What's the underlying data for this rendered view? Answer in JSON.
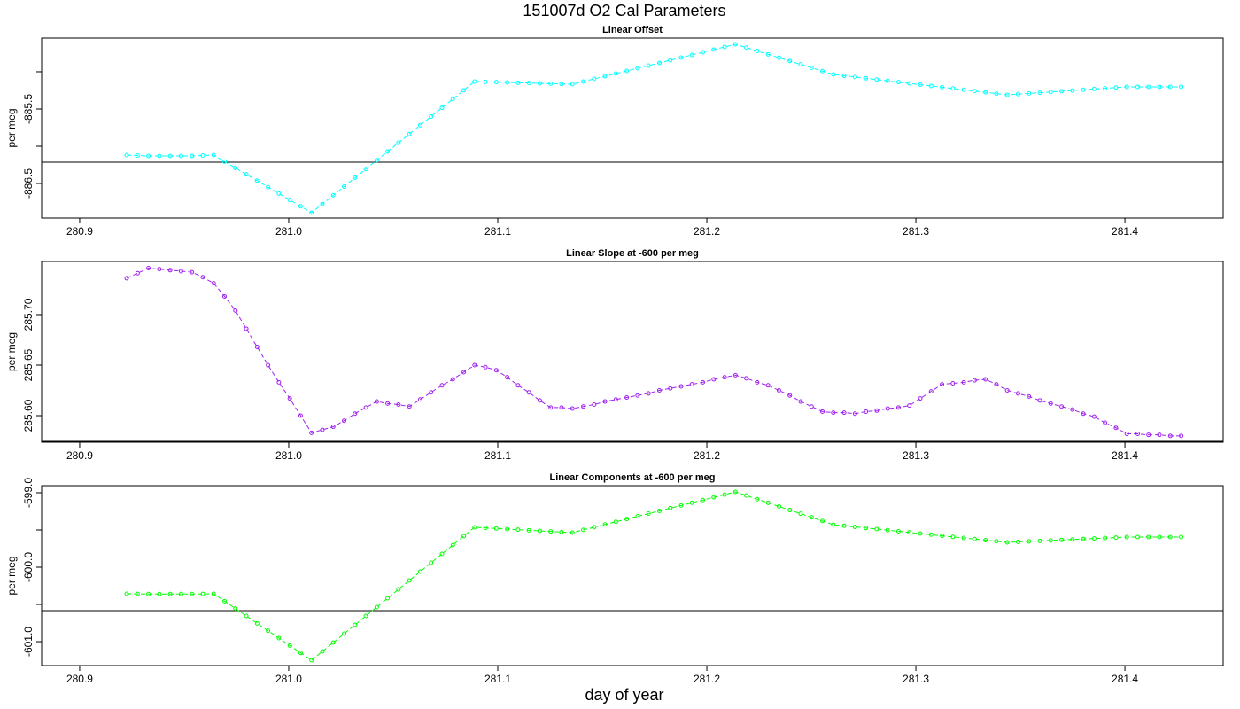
{
  "title": "151007d   O2 Cal Parameters",
  "xlabel": "day of year",
  "chart_data": [
    {
      "type": "line",
      "title": "Linear Offset",
      "ylabel": "per meg",
      "xlim": [
        280.8818,
        281.447
      ],
      "xticks": [
        280.9,
        {
          "value": 281,
          "label": "281.0"
        },
        281.1,
        281.2,
        281.3,
        281.4
      ],
      "ylim": [
        -886.964,
        -884.548
      ],
      "yticks": [
        -885.5,
        -886.5
      ],
      "yminor": [
        -885,
        -886
      ],
      "hline": -886.214,
      "x": [
        280.9225,
        280.9277,
        280.9329,
        280.9381,
        280.9433,
        280.9485,
        280.9537,
        280.9589,
        280.9641,
        280.9693,
        280.9745,
        280.9797,
        280.9849,
        280.9901,
        280.9953,
        281.0005,
        281.0057,
        281.0109,
        281.0161,
        281.0213,
        281.0265,
        281.0317,
        281.0369,
        281.0421,
        281.0473,
        281.0525,
        281.0577,
        281.0629,
        281.0681,
        281.0733,
        281.0785,
        281.0837,
        281.0889,
        281.0941,
        281.0993,
        281.1045,
        281.1097,
        281.1149,
        281.1201,
        281.1253,
        281.1305,
        281.1357,
        281.1409,
        281.1461,
        281.1513,
        281.1565,
        281.1617,
        281.1669,
        281.1721,
        281.1773,
        281.1825,
        281.1877,
        281.1929,
        281.1981,
        281.2033,
        281.2085,
        281.2137,
        281.2189,
        281.2241,
        281.2293,
        281.2345,
        281.2397,
        281.2449,
        281.2501,
        281.2553,
        281.2605,
        281.2657,
        281.2709,
        281.2761,
        281.2813,
        281.2865,
        281.2917,
        281.2969,
        281.3021,
        281.3073,
        281.3125,
        281.3177,
        281.3229,
        281.3281,
        281.3333,
        281.3385,
        281.3437,
        281.3489,
        281.3541,
        281.3593,
        281.3645,
        281.3697,
        281.3749,
        281.3801,
        281.3853,
        281.3905,
        281.3957,
        281.4009,
        281.4061,
        281.4113,
        281.4165,
        281.4217,
        281.4269
      ],
      "series": [
        {
          "color": "#00ffff",
          "values": [
            -886.119,
            -886.125,
            -886.131,
            -886.131,
            -886.131,
            -886.131,
            -886.131,
            -886.125,
            -886.119,
            -886.205,
            -886.291,
            -886.377,
            -886.463,
            -886.549,
            -886.635,
            -886.721,
            -886.807,
            -886.893,
            -886.776,
            -886.658,
            -886.541,
            -886.423,
            -886.306,
            -886.188,
            -886.071,
            -885.953,
            -885.836,
            -885.718,
            -885.601,
            -885.483,
            -885.366,
            -885.248,
            -885.131,
            -885.135,
            -885.139,
            -885.143,
            -885.147,
            -885.151,
            -885.155,
            -885.159,
            -885.163,
            -885.167,
            -885.131,
            -885.095,
            -885.06,
            -885.024,
            -884.988,
            -884.953,
            -884.917,
            -884.881,
            -884.845,
            -884.81,
            -884.774,
            -884.738,
            -884.702,
            -884.667,
            -884.631,
            -884.676,
            -884.721,
            -884.766,
            -884.811,
            -884.856,
            -884.901,
            -884.946,
            -884.991,
            -885.036,
            -885.053,
            -885.07,
            -885.087,
            -885.105,
            -885.122,
            -885.139,
            -885.156,
            -885.173,
            -885.19,
            -885.207,
            -885.224,
            -885.241,
            -885.259,
            -885.276,
            -885.293,
            -885.31,
            -885.3,
            -885.29,
            -885.281,
            -885.271,
            -885.261,
            -885.251,
            -885.241,
            -885.231,
            -885.222,
            -885.212,
            -885.202,
            -885.202,
            -885.202,
            -885.202,
            -885.202,
            -885.202
          ]
        }
      ]
    },
    {
      "type": "line",
      "title": "Linear Slope at -600 per meg",
      "ylabel": "per meg",
      "xlim": [
        280.8818,
        281.447
      ],
      "xticks": [
        280.9,
        {
          "value": 281,
          "label": "281.0"
        },
        281.1,
        281.2,
        281.3,
        281.4
      ],
      "ylim": [
        285.5737,
        285.7526
      ],
      "yticks": [
        {
          "value": 285.6,
          "label": "285.60"
        },
        285.65,
        {
          "value": 285.7,
          "label": "285.70"
        }
      ],
      "yminor": [],
      "hline": 285.5746,
      "x": [
        280.9225,
        280.9277,
        280.9329,
        280.9381,
        280.9433,
        280.9485,
        280.9537,
        280.9589,
        280.9641,
        280.9693,
        280.9745,
        280.9797,
        280.9849,
        280.9901,
        280.9953,
        281.0005,
        281.0057,
        281.0109,
        281.0161,
        281.0213,
        281.0265,
        281.0317,
        281.0369,
        281.0421,
        281.0473,
        281.0525,
        281.0577,
        281.0629,
        281.0681,
        281.0733,
        281.0785,
        281.0837,
        281.0889,
        281.0941,
        281.0993,
        281.1045,
        281.1097,
        281.1149,
        281.1201,
        281.1253,
        281.1305,
        281.1357,
        281.1409,
        281.1461,
        281.1513,
        281.1565,
        281.1617,
        281.1669,
        281.1721,
        281.1773,
        281.1825,
        281.1877,
        281.1929,
        281.1981,
        281.2033,
        281.2085,
        281.2137,
        281.2189,
        281.2241,
        281.2293,
        281.2345,
        281.2397,
        281.2449,
        281.2501,
        281.2553,
        281.2605,
        281.2657,
        281.2709,
        281.2761,
        281.2813,
        281.2865,
        281.2917,
        281.2969,
        281.3021,
        281.3073,
        281.3125,
        281.3177,
        281.3229,
        281.3281,
        281.3333,
        281.3385,
        281.3437,
        281.3489,
        281.3541,
        281.3593,
        281.3645,
        281.3697,
        281.3749,
        281.3801,
        281.3853,
        281.3905,
        281.3957,
        281.4009,
        281.4061,
        281.4113,
        281.4165,
        281.4217,
        281.4269
      ],
      "series": [
        {
          "color": "#a020f0",
          "values": [
            285.736,
            285.741,
            285.746,
            285.745,
            285.744,
            285.743,
            285.742,
            285.737,
            285.731,
            285.718,
            285.704,
            285.686,
            285.668,
            285.65,
            285.633,
            285.617,
            285.6,
            285.583,
            285.586,
            285.589,
            285.595,
            285.602,
            285.608,
            285.614,
            285.612,
            285.611,
            285.609,
            285.616,
            285.623,
            285.63,
            285.636,
            285.643,
            285.65,
            285.648,
            285.645,
            285.638,
            285.63,
            285.623,
            285.615,
            285.608,
            285.608,
            285.607,
            285.609,
            285.611,
            285.614,
            285.616,
            285.618,
            285.62,
            285.622,
            285.625,
            285.627,
            285.629,
            285.631,
            285.633,
            285.636,
            285.638,
            285.64,
            285.637,
            285.633,
            285.63,
            285.625,
            285.62,
            285.614,
            285.609,
            285.604,
            285.603,
            285.603,
            285.602,
            285.604,
            285.605,
            285.607,
            285.608,
            285.61,
            285.617,
            285.624,
            285.631,
            285.632,
            285.633,
            285.635,
            285.636,
            285.631,
            285.625,
            285.622,
            285.619,
            285.615,
            285.612,
            285.609,
            285.606,
            285.602,
            285.599,
            285.593,
            285.588,
            285.582,
            285.582,
            285.581,
            285.581,
            285.58,
            285.58
          ]
        }
      ]
    },
    {
      "type": "line",
      "title": "Linear Components at -600 per meg",
      "ylabel": "per meg",
      "xlim": [
        280.8818,
        281.447
      ],
      "xticks": [
        280.9,
        {
          "value": 281,
          "label": "281.0"
        },
        281.1,
        281.2,
        281.3,
        281.4
      ],
      "ylim": [
        -601.321,
        -598.905
      ],
      "yticks": [
        {
          "value": -599,
          "label": "-599.0"
        },
        {
          "value": -600,
          "label": "-600.0"
        },
        {
          "value": -601,
          "label": "-601.0"
        }
      ],
      "yminor": [
        -599.5,
        -600.5
      ],
      "hline": -600.583,
      "x": [
        280.9225,
        280.9277,
        280.9329,
        280.9381,
        280.9433,
        280.9485,
        280.9537,
        280.9589,
        280.9641,
        280.9693,
        280.9745,
        280.9797,
        280.9849,
        280.9901,
        280.9953,
        281.0005,
        281.0057,
        281.0109,
        281.0161,
        281.0213,
        281.0265,
        281.0317,
        281.0369,
        281.0421,
        281.0473,
        281.0525,
        281.0577,
        281.0629,
        281.0681,
        281.0733,
        281.0785,
        281.0837,
        281.0889,
        281.0941,
        281.0993,
        281.1045,
        281.1097,
        281.1149,
        281.1201,
        281.1253,
        281.1305,
        281.1357,
        281.1409,
        281.1461,
        281.1513,
        281.1565,
        281.1617,
        281.1669,
        281.1721,
        281.1773,
        281.1825,
        281.1877,
        281.1929,
        281.1981,
        281.2033,
        281.2085,
        281.2137,
        281.2189,
        281.2241,
        281.2293,
        281.2345,
        281.2397,
        281.2449,
        281.2501,
        281.2553,
        281.2605,
        281.2657,
        281.2709,
        281.2761,
        281.2813,
        281.2865,
        281.2917,
        281.2969,
        281.3021,
        281.3073,
        281.3125,
        281.3177,
        281.3229,
        281.3281,
        281.3333,
        281.3385,
        281.3437,
        281.3489,
        281.3541,
        281.3593,
        281.3645,
        281.3697,
        281.3749,
        281.3801,
        281.3853,
        281.3905,
        281.3957,
        281.4009,
        281.4061,
        281.4113,
        281.4165,
        281.4217,
        281.4269
      ],
      "series": [
        {
          "color": "#00ff00",
          "values": [
            -600.357,
            -600.359,
            -600.36,
            -600.36,
            -600.36,
            -600.36,
            -600.36,
            -600.359,
            -600.357,
            -600.456,
            -600.555,
            -600.655,
            -600.754,
            -600.853,
            -600.952,
            -601.052,
            -601.151,
            -601.25,
            -601.131,
            -601.012,
            -600.893,
            -600.774,
            -600.655,
            -600.536,
            -600.417,
            -600.297,
            -600.178,
            -600.059,
            -599.94,
            -599.821,
            -599.702,
            -599.583,
            -599.464,
            -599.472,
            -599.48,
            -599.488,
            -599.496,
            -599.504,
            -599.512,
            -599.52,
            -599.528,
            -599.536,
            -599.499,
            -599.463,
            -599.426,
            -599.39,
            -599.353,
            -599.317,
            -599.28,
            -599.244,
            -599.207,
            -599.171,
            -599.134,
            -599.098,
            -599.061,
            -599.025,
            -598.988,
            -599.037,
            -599.086,
            -599.135,
            -599.184,
            -599.233,
            -599.282,
            -599.331,
            -599.38,
            -599.429,
            -599.444,
            -599.459,
            -599.474,
            -599.488,
            -599.503,
            -599.518,
            -599.533,
            -599.548,
            -599.563,
            -599.578,
            -599.593,
            -599.607,
            -599.622,
            -599.637,
            -599.652,
            -599.667,
            -599.66,
            -599.654,
            -599.647,
            -599.641,
            -599.634,
            -599.628,
            -599.621,
            -599.615,
            -599.608,
            -599.602,
            -599.595,
            -599.595,
            -599.595,
            -599.595,
            -599.595,
            -599.595
          ]
        }
      ]
    }
  ]
}
